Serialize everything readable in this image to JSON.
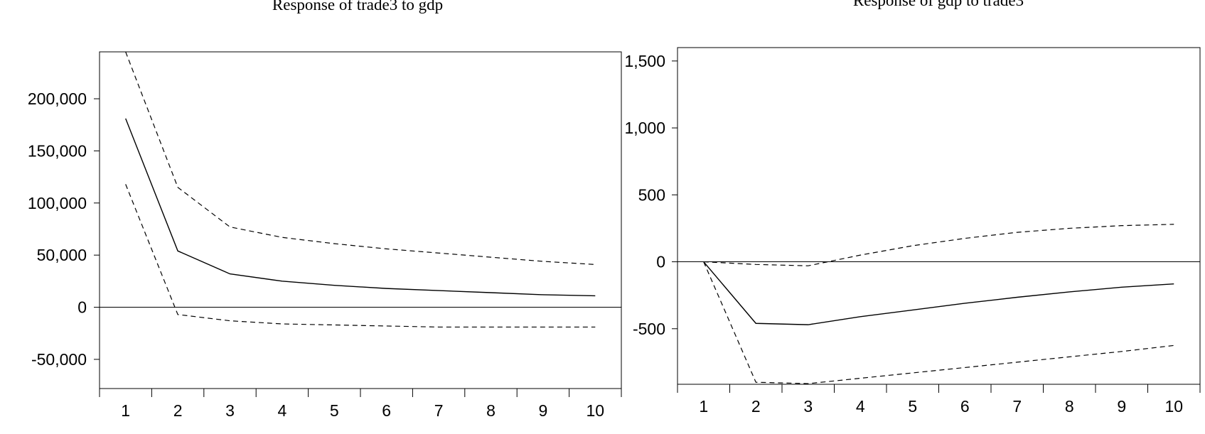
{
  "chart_data": [
    {
      "type": "line",
      "title": "Response of trade3 to gdp",
      "x": [
        1,
        2,
        3,
        4,
        5,
        6,
        7,
        8,
        9,
        10
      ],
      "x_tick_labels": [
        "1",
        "2",
        "3",
        "4",
        "5",
        "6",
        "7",
        "8",
        "9",
        "10"
      ],
      "y_ticks": [
        -50000,
        0,
        50000,
        100000,
        150000,
        200000
      ],
      "y_tick_labels": [
        "-50,000",
        "0",
        "50,000",
        "100,000",
        "150,000",
        "200,000"
      ],
      "ylim": [
        -78000,
        245000
      ],
      "grid": false,
      "zero_line": true,
      "series": [
        {
          "style": "dashed",
          "values": [
            245000,
            115000,
            77000,
            67000,
            61000,
            56000,
            52000,
            48000,
            44000,
            41000
          ]
        },
        {
          "style": "solid",
          "values": [
            181000,
            54000,
            32000,
            25000,
            21000,
            18000,
            16000,
            14000,
            12000,
            11000
          ]
        },
        {
          "style": "dashed",
          "values": [
            118000,
            -7000,
            -13000,
            -16000,
            -17000,
            -18000,
            -19000,
            -19000,
            -19000,
            -19000
          ]
        }
      ]
    },
    {
      "type": "line",
      "title": "Response of gdp to trade3",
      "x": [
        1,
        2,
        3,
        4,
        5,
        6,
        7,
        8,
        9,
        10
      ],
      "x_tick_labels": [
        "1",
        "2",
        "3",
        "4",
        "5",
        "6",
        "7",
        "8",
        "9",
        "10"
      ],
      "y_ticks": [
        -500,
        0,
        500,
        1000,
        1500
      ],
      "y_tick_labels": [
        "-500",
        "0",
        "500",
        "1,000",
        "1,500"
      ],
      "ylim": [
        -915,
        1600
      ],
      "grid": false,
      "zero_line": true,
      "series": [
        {
          "style": "dashed",
          "values": [
            0,
            -20,
            -30,
            50,
            120,
            175,
            220,
            250,
            270,
            280
          ]
        },
        {
          "style": "solid",
          "values": [
            0,
            -460,
            -470,
            -410,
            -360,
            -310,
            -265,
            -225,
            -190,
            -165
          ]
        },
        {
          "style": "dashed",
          "values": [
            0,
            -900,
            -910,
            -870,
            -830,
            -790,
            -750,
            -710,
            -670,
            -625
          ]
        }
      ]
    }
  ]
}
